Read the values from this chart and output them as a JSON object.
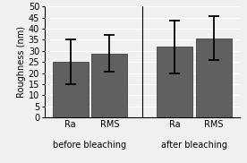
{
  "groups": [
    "before bleaching",
    "after bleaching"
  ],
  "labels": [
    "Ra",
    "RMS",
    "Ra",
    "RMS"
  ],
  "values": [
    25.0,
    28.5,
    32.0,
    35.5
  ],
  "errors_upper": [
    10.0,
    8.5,
    11.5,
    10.0
  ],
  "errors_lower": [
    10.0,
    8.0,
    12.0,
    9.5
  ],
  "bar_color": "#606060",
  "bar_edgecolor": "#404040",
  "ylabel": "Roughness (nm)",
  "ylim": [
    0,
    50
  ],
  "yticks": [
    0,
    5,
    10,
    15,
    20,
    25,
    30,
    35,
    40,
    45,
    50
  ],
  "group_label_fontsize": 7,
  "tick_label_fontsize": 7,
  "ylabel_fontsize": 7,
  "background_color": "#f0f0f0",
  "bar_width": 0.55
}
